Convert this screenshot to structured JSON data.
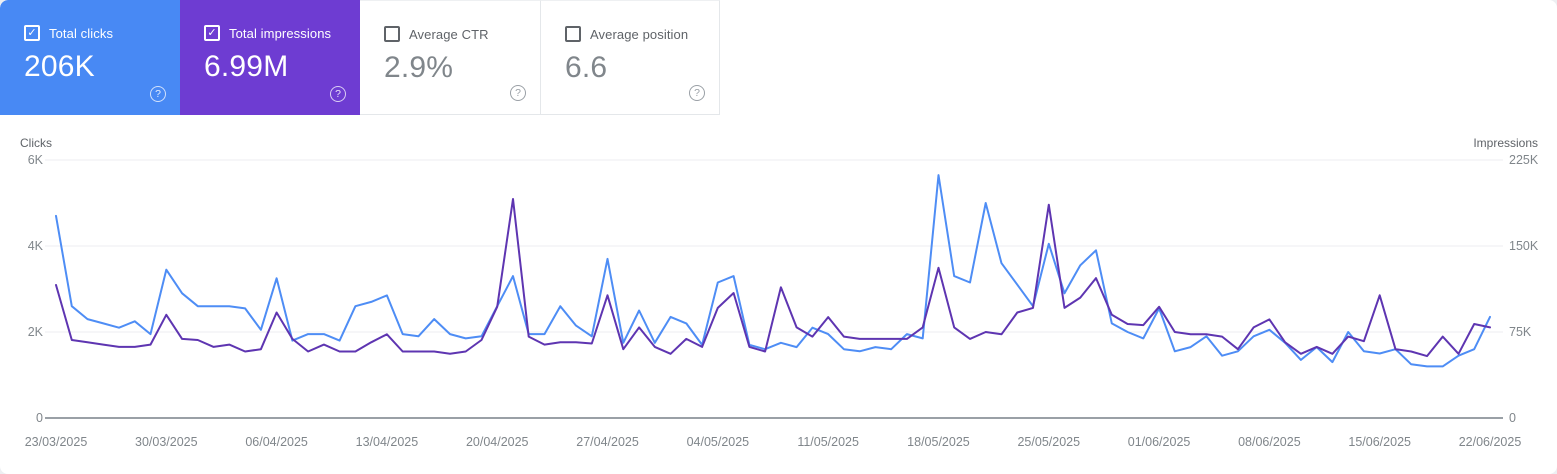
{
  "cards": [
    {
      "label": "Total clicks",
      "value": "206K",
      "checked": true
    },
    {
      "label": "Total impressions",
      "value": "6.99M",
      "checked": true
    },
    {
      "label": "Average CTR",
      "value": "2.9%",
      "checked": false
    },
    {
      "label": "Average position",
      "value": "6.6",
      "checked": false
    }
  ],
  "help_icon_glyph": "?",
  "colors": {
    "clicks_card": "#4889f4",
    "impressions_card": "#6e3cd2",
    "clicks_line": "#4e8df5",
    "impressions_line": "#5e35b1",
    "gridline": "#eceef0",
    "axis_line": "#9aa0a6"
  },
  "chart_data": {
    "type": "line",
    "grid": true,
    "legend_position": "none",
    "left_axis": {
      "title": "Clicks",
      "max": 6000,
      "ticks": [
        {
          "label": "6K",
          "value": 6000
        },
        {
          "label": "4K",
          "value": 4000
        },
        {
          "label": "2K",
          "value": 2000
        },
        {
          "label": "0",
          "value": 0
        }
      ]
    },
    "right_axis": {
      "title": "Impressions",
      "max": 225000,
      "ticks": [
        {
          "label": "225K",
          "value": 225000
        },
        {
          "label": "150K",
          "value": 150000
        },
        {
          "label": "75K",
          "value": 75000
        },
        {
          "label": "0",
          "value": 0
        }
      ]
    },
    "x_tick_labels": [
      "23/03/2025",
      "30/03/2025",
      "06/04/2025",
      "13/04/2025",
      "20/04/2025",
      "27/04/2025",
      "04/05/2025",
      "11/05/2025",
      "18/05/2025",
      "25/05/2025",
      "01/06/2025",
      "08/06/2025",
      "15/06/2025",
      "22/06/2025"
    ],
    "series": [
      {
        "name": "Clicks",
        "axis": "left",
        "values": [
          4700,
          2600,
          2300,
          2200,
          2100,
          2250,
          1950,
          3450,
          2900,
          2600,
          2600,
          2600,
          2550,
          2050,
          3250,
          1800,
          1950,
          1950,
          1800,
          2600,
          2700,
          2850,
          1950,
          1900,
          2300,
          1950,
          1850,
          1900,
          2600,
          3300,
          1950,
          1950,
          2600,
          2150,
          1900,
          3700,
          1750,
          2500,
          1750,
          2350,
          2200,
          1700,
          3150,
          3300,
          1700,
          1600,
          1750,
          1650,
          2100,
          1950,
          1600,
          1550,
          1650,
          1600,
          1950,
          1850,
          5650,
          3300,
          3150,
          5000,
          3600,
          3100,
          2600,
          4050,
          2900,
          3550,
          3900,
          2200,
          2000,
          1850,
          2550,
          1550,
          1650,
          1900,
          1450,
          1550,
          1900,
          2050,
          1750,
          1350,
          1650,
          1300,
          2000,
          1550,
          1500,
          1600,
          1250,
          1200,
          1200,
          1450,
          1600,
          2350
        ]
      },
      {
        "name": "Impressions",
        "axis": "right",
        "values": [
          116000,
          68000,
          66000,
          64000,
          62000,
          62000,
          64000,
          90000,
          69000,
          68000,
          62000,
          64000,
          58000,
          60000,
          92000,
          69000,
          58000,
          64000,
          58000,
          58000,
          66000,
          73000,
          58000,
          58000,
          58000,
          56000,
          58000,
          68000,
          97000,
          191000,
          71000,
          64000,
          66000,
          66000,
          65000,
          107000,
          60000,
          79000,
          62000,
          56000,
          69000,
          62000,
          96000,
          109000,
          62000,
          58000,
          114000,
          79000,
          71000,
          88000,
          71000,
          69000,
          69000,
          69000,
          69000,
          79000,
          131000,
          79000,
          69000,
          75000,
          73000,
          92000,
          96000,
          186000,
          96000,
          105000,
          122000,
          90000,
          82000,
          81000,
          97000,
          75000,
          73000,
          73000,
          71000,
          60000,
          79000,
          86000,
          66000,
          56000,
          62000,
          56000,
          71000,
          67000,
          107000,
          60000,
          58000,
          54000,
          71000,
          56000,
          82000,
          79000
        ]
      }
    ]
  }
}
